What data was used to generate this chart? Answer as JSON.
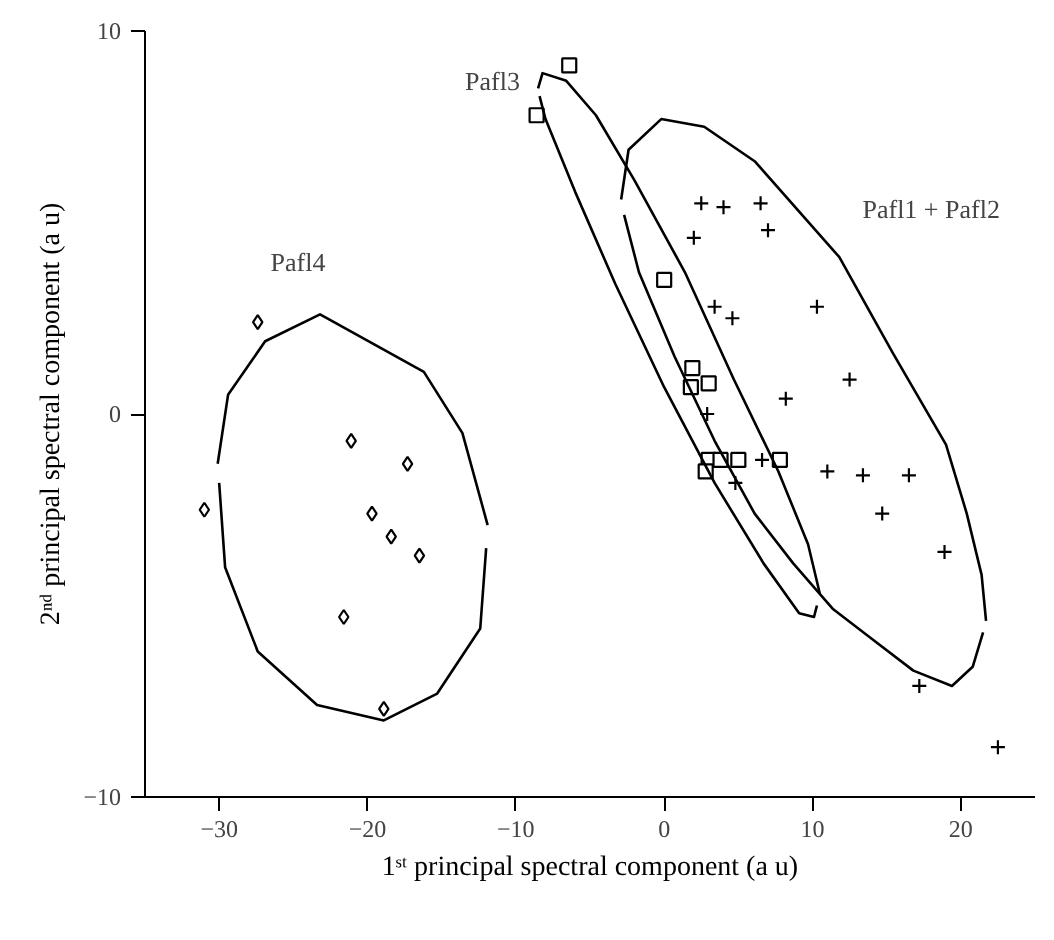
{
  "chart_data": {
    "type": "scatter",
    "xlabel": "1ˢᵗ principal spectral component (a u)",
    "ylabel": "2ⁿᵈ principal spectral component (a u)",
    "xlim": [
      -35,
      25
    ],
    "ylim": [
      -10,
      10
    ],
    "xticks": [
      -30,
      -20,
      -10,
      0,
      10,
      20
    ],
    "yticks": [
      -10,
      0,
      10
    ],
    "grid": false,
    "legend": false,
    "series": [
      {
        "color": "#000000",
        "marker": "diamond",
        "x": [
          -31.0,
          -27.4,
          -21.1,
          -17.3,
          -19.7,
          -18.4,
          -16.5,
          -21.6,
          -18.9
        ],
        "values": [
          -2.5,
          2.4,
          -0.7,
          -1.3,
          -2.6,
          -3.2,
          -3.7,
          -5.3,
          -7.7
        ]
      },
      {
        "color": "#000000",
        "marker": "square",
        "x": [
          -8.6,
          -6.4,
          0.0,
          1.9,
          1.8,
          3.0,
          3.0,
          3.8,
          5.0,
          7.8,
          2.8
        ],
        "values": [
          7.8,
          9.1,
          3.5,
          1.2,
          0.7,
          0.8,
          -1.2,
          -1.2,
          -1.2,
          -1.2,
          -1.5
        ]
      },
      {
        "color": "#000000",
        "marker": "cross",
        "x": [
          2.5,
          4.0,
          6.5,
          2.0,
          7.0,
          3.4,
          4.6,
          10.3,
          12.5,
          8.2,
          2.9,
          6.6,
          4.8,
          11.0,
          13.4,
          16.5,
          14.7,
          18.9,
          17.2,
          22.5
        ],
        "values": [
          5.5,
          5.4,
          5.5,
          4.6,
          4.8,
          2.8,
          2.5,
          2.8,
          0.9,
          0.4,
          0.0,
          -1.2,
          -1.8,
          -1.5,
          -1.6,
          -1.6,
          -2.6,
          -3.6,
          -7.1,
          -8.7
        ]
      },
      {
        "name": "Pafl4",
        "type": "line",
        "color": "#000000",
        "marker": "none",
        "x": [
          -30.1,
          -29.4,
          -26.9,
          -23.2,
          -16.2,
          -13.6,
          -11.9
        ],
        "values": [
          -1.3,
          0.5,
          1.9,
          2.6,
          1.1,
          -0.5,
          -2.9
        ]
      },
      {
        "type": "line",
        "color": "#000000",
        "marker": "none",
        "x": [
          -30.0,
          -29.6,
          -27.4,
          -23.4,
          -18.9,
          -15.3,
          -12.4,
          -12.0
        ],
        "values": [
          -1.8,
          -4.0,
          -6.2,
          -7.6,
          -8.0,
          -7.3,
          -5.6,
          -3.5
        ]
      },
      {
        "name": "Pafl3",
        "type": "line",
        "color": "#000000",
        "marker": "none",
        "x": [
          -8.5,
          -8.2,
          -6.6,
          -4.6,
          -2.0,
          1.4,
          4.7,
          7.7,
          9.7,
          10.5
        ],
        "values": [
          8.5,
          8.9,
          8.7,
          7.8,
          6.1,
          3.7,
          0.9,
          -1.5,
          -3.4,
          -4.7
        ]
      },
      {
        "type": "line",
        "color": "#000000",
        "marker": "none",
        "x": [
          -8.4,
          -8.0,
          -6.0,
          -3.3,
          0.0,
          3.4,
          6.7,
          9.1,
          10.1,
          10.3
        ],
        "values": [
          8.3,
          7.7,
          5.8,
          3.4,
          0.7,
          -1.8,
          -3.9,
          -5.2,
          -5.3,
          -5.0
        ]
      },
      {
        "name": "Pafl1 + Pafl2",
        "type": "line",
        "color": "#000000",
        "marker": "none",
        "x": [
          -2.9,
          -2.4,
          -0.2,
          2.7,
          6.1,
          11.8,
          15.4,
          19.0,
          20.4,
          21.4,
          21.7
        ],
        "values": [
          5.6,
          6.9,
          7.7,
          7.5,
          6.6,
          4.1,
          1.6,
          -0.8,
          -2.6,
          -4.2,
          -5.4
        ]
      },
      {
        "type": "line",
        "color": "#000000",
        "marker": "none",
        "x": [
          -2.7,
          -1.7,
          0.7,
          3.4,
          6.1,
          8.7,
          11.4,
          14.1,
          16.8,
          19.4,
          20.8,
          21.5
        ],
        "values": [
          5.2,
          3.7,
          1.5,
          -0.7,
          -2.6,
          -3.9,
          -5.1,
          -5.9,
          -6.7,
          -7.1,
          -6.6,
          -5.7
        ]
      }
    ]
  }
}
